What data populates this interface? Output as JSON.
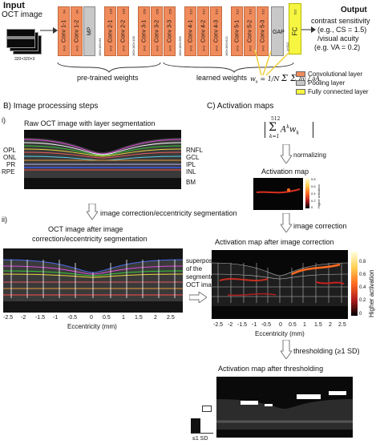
{
  "input": {
    "title": "Input",
    "subtitle": "OCT image",
    "size": "320×320×3"
  },
  "network": {
    "blocks": [
      {
        "label": "Conv 1-1",
        "ch": "64"
      },
      {
        "label": "Conv 1-2",
        "ch": "64"
      },
      {
        "label": "MP",
        "ch": ""
      },
      {
        "label": "Conv 2-1",
        "ch": "128"
      },
      {
        "label": "Conv 2-2",
        "ch": "128"
      },
      {
        "label": "Conv 3-1",
        "ch": "256"
      },
      {
        "label": "Conv 3-2",
        "ch": "256"
      },
      {
        "label": "Conv 3-3",
        "ch": "256"
      },
      {
        "label": "Conv 4-1",
        "ch": "512"
      },
      {
        "label": "Conv 4-2",
        "ch": "512"
      },
      {
        "label": "Conv 4-3",
        "ch": "512"
      },
      {
        "label": "Conv 5-1",
        "ch": "512"
      },
      {
        "label": "Conv 5-2",
        "ch": "512"
      },
      {
        "label": "Conv 5-3",
        "ch": "512"
      }
    ],
    "kernel": "3×3",
    "dims": [
      "160×160×64",
      "160×160×128",
      "160×160×256",
      "160×160×512",
      "1×512"
    ],
    "gap": "GAP",
    "fc": "FC",
    "fc_ch": "512",
    "pretrained": "pre-trained weights",
    "learned": "learned weights",
    "wk": "w",
    "wk_sub": "k",
    "colors": {
      "conv": "#f08b5c",
      "pool": "#c8c8c8",
      "fc": "#f5f542",
      "learned_line": "#f2cf3a"
    }
  },
  "output": {
    "title": "Output",
    "line1": "contrast sensitivity",
    "line2": "(e.g., CS = 1.5)",
    "line3": "/visual acuity",
    "line4": "(e.g. VA = 0.2)"
  },
  "legend": [
    {
      "label": "Convolutional layer",
      "color": "#f08b5c"
    },
    {
      "label": "Pooling layer",
      "color": "#c8c8c8"
    },
    {
      "label": "Fully connected layer",
      "color": "#f5f542"
    }
  ],
  "sectionB": {
    "title": "B) Image processing steps",
    "i": "i)",
    "ii": "ii)",
    "raw_title": "Raw OCT image with layer segmentation",
    "layers_left": [
      "OPL",
      "ONL",
      "PR",
      "RPE"
    ],
    "layers_right": [
      "RNFL",
      "GCL",
      "IPL",
      "INL",
      "BM"
    ],
    "step1": "image correction/eccentricity segmentation",
    "corr_title_1": "OCT image after image",
    "corr_title_2": "correction/eccentricity segmentation",
    "ticks": [
      "-2.5",
      "-2",
      "-1.5",
      "-1",
      "-0.5",
      "0",
      "0.5",
      "1",
      "1.5",
      "2",
      "2.5"
    ],
    "xlabel": "Eccentricity (mm)",
    "superpos": [
      "superposition",
      "of the",
      "segmented",
      "OCT image"
    ]
  },
  "sectionC": {
    "title": "C) Activation maps",
    "formula_top": "512",
    "formula_bottom": "k=1",
    "formula_body": "A",
    "normalizing": "normalizing",
    "act_title": "Activation map",
    "cbar_ticks": [
      "0.8",
      "0.6",
      "0.4",
      "0.2",
      "0"
    ],
    "higher": "Higher activation",
    "step2": "image correction",
    "after_corr": "Activation map after image correction",
    "step3": "thresholding (≥1 SD)",
    "after_thresh": "Activation map after thresholding",
    "sd_label": "≤1 SD"
  },
  "formula_gradient": "∂y / ∂A",
  "formula_norm": "1/N",
  "formula_sum": "Σ Σ"
}
